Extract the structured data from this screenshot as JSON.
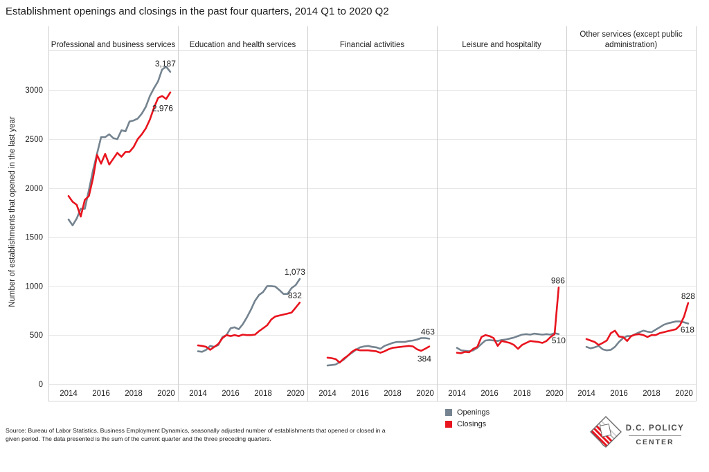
{
  "chart_data": {
    "type": "line",
    "title": "Establishment openings and closings in the past four quarters, 2014 Q1 to 2020 Q2",
    "xlabel": "",
    "ylabel": "Number of establishments that opened in the last year",
    "ylim": [
      0,
      3400
    ],
    "y_ticks": [
      0,
      500,
      1000,
      1500,
      2000,
      2500,
      3000
    ],
    "x_tick_labels": [
      "2014",
      "2016",
      "2018",
      "2020"
    ],
    "grid": "horizontal",
    "legend_position": "bottom-right",
    "x": [
      "2014 Q1",
      "2014 Q2",
      "2014 Q3",
      "2014 Q4",
      "2015 Q1",
      "2015 Q2",
      "2015 Q3",
      "2015 Q4",
      "2016 Q1",
      "2016 Q2",
      "2016 Q3",
      "2016 Q4",
      "2017 Q1",
      "2017 Q2",
      "2017 Q3",
      "2017 Q4",
      "2018 Q1",
      "2018 Q2",
      "2018 Q3",
      "2018 Q4",
      "2019 Q1",
      "2019 Q2",
      "2019 Q3",
      "2019 Q4",
      "2020 Q1",
      "2020 Q2"
    ],
    "panels": [
      {
        "title": "Professional and business services",
        "series": [
          {
            "name": "Openings",
            "end_label": "3,187",
            "values": [
              1680,
              1620,
              1690,
              1790,
              1790,
              1980,
              2180,
              2350,
              2520,
              2520,
              2550,
              2510,
              2500,
              2590,
              2580,
              2680,
              2690,
              2710,
              2760,
              2830,
              2940,
              3020,
              3090,
              3210,
              3240,
              3187
            ]
          },
          {
            "name": "Closings",
            "end_label": "2,976",
            "values": [
              1920,
              1860,
              1830,
              1710,
              1880,
              1920,
              2100,
              2340,
              2250,
              2350,
              2240,
              2300,
              2360,
              2320,
              2370,
              2370,
              2420,
              2500,
              2550,
              2610,
              2700,
              2820,
              2920,
              2940,
              2910,
              2976
            ]
          }
        ]
      },
      {
        "title": "Education and health services",
        "series": [
          {
            "name": "Openings",
            "end_label": "1,073",
            "values": [
              335,
              330,
              350,
              390,
              380,
              400,
              480,
              500,
              570,
              580,
              560,
              610,
              680,
              760,
              850,
              910,
              940,
              1000,
              1000,
              995,
              960,
              920,
              920,
              980,
              1010,
              1073
            ]
          },
          {
            "name": "Closings",
            "end_label": "832",
            "values": [
              395,
              390,
              380,
              350,
              380,
              410,
              470,
              500,
              490,
              500,
              490,
              505,
              500,
              500,
              505,
              540,
              570,
              600,
              660,
              690,
              700,
              710,
              720,
              730,
              780,
              832
            ]
          }
        ]
      },
      {
        "title": "Financial activities",
        "series": [
          {
            "name": "Openings",
            "end_label": "463",
            "values": [
              190,
              195,
              200,
              225,
              250,
              290,
              320,
              350,
              375,
              385,
              390,
              380,
              375,
              360,
              390,
              405,
              420,
              430,
              430,
              430,
              440,
              445,
              455,
              470,
              470,
              463
            ]
          },
          {
            "name": "Closings",
            "end_label": "384",
            "values": [
              270,
              265,
              255,
              220,
              260,
              290,
              330,
              355,
              345,
              345,
              345,
              340,
              335,
              320,
              335,
              355,
              370,
              375,
              380,
              385,
              390,
              385,
              355,
              340,
              360,
              384
            ]
          }
        ]
      },
      {
        "title": "Leisure and hospitality",
        "series": [
          {
            "name": "Openings",
            "end_label": "510",
            "values": [
              370,
              345,
              340,
              335,
              345,
              370,
              410,
              445,
              450,
              445,
              440,
              450,
              455,
              465,
              475,
              490,
              505,
              510,
              505,
              515,
              510,
              505,
              510,
              505,
              520,
              510
            ]
          },
          {
            "name": "Closings",
            "end_label": "986",
            "values": [
              320,
              315,
              330,
              325,
              360,
              380,
              480,
              500,
              490,
              470,
              390,
              440,
              430,
              420,
              400,
              360,
              400,
              420,
              440,
              435,
              430,
              420,
              440,
              480,
              510,
              986
            ]
          }
        ]
      },
      {
        "title": "Other services (except public administration)",
        "series": [
          {
            "name": "Openings",
            "end_label": "618",
            "values": [
              380,
              365,
              375,
              390,
              355,
              345,
              350,
              380,
              430,
              470,
              490,
              490,
              510,
              530,
              545,
              535,
              530,
              555,
              580,
              605,
              620,
              630,
              640,
              640,
              630,
              618
            ]
          },
          {
            "name": "Closings",
            "end_label": "828",
            "values": [
              460,
              445,
              430,
              400,
              420,
              445,
              520,
              545,
              485,
              480,
              440,
              490,
              505,
              510,
              500,
              480,
              500,
              500,
              520,
              530,
              540,
              550,
              560,
              600,
              690,
              828
            ]
          }
        ]
      }
    ]
  },
  "legend": {
    "items": [
      {
        "label": "Openings",
        "color": "#74838f"
      },
      {
        "label": "Closings",
        "color": "#e8141e"
      }
    ]
  },
  "source_lines": [
    "Source: Bureau of Labor Statistics, Business Employment Dynamics, seasonally adjusted number of establishments that opened or closed in a",
    "given period. The data presented is the sum of the current quarter and the three preceding quarters."
  ],
  "logo": {
    "name_line1": "D.C. POLICY",
    "name_line2": "CENTER",
    "icon": "dc-map-icon",
    "accent_color": "#e8141e"
  }
}
